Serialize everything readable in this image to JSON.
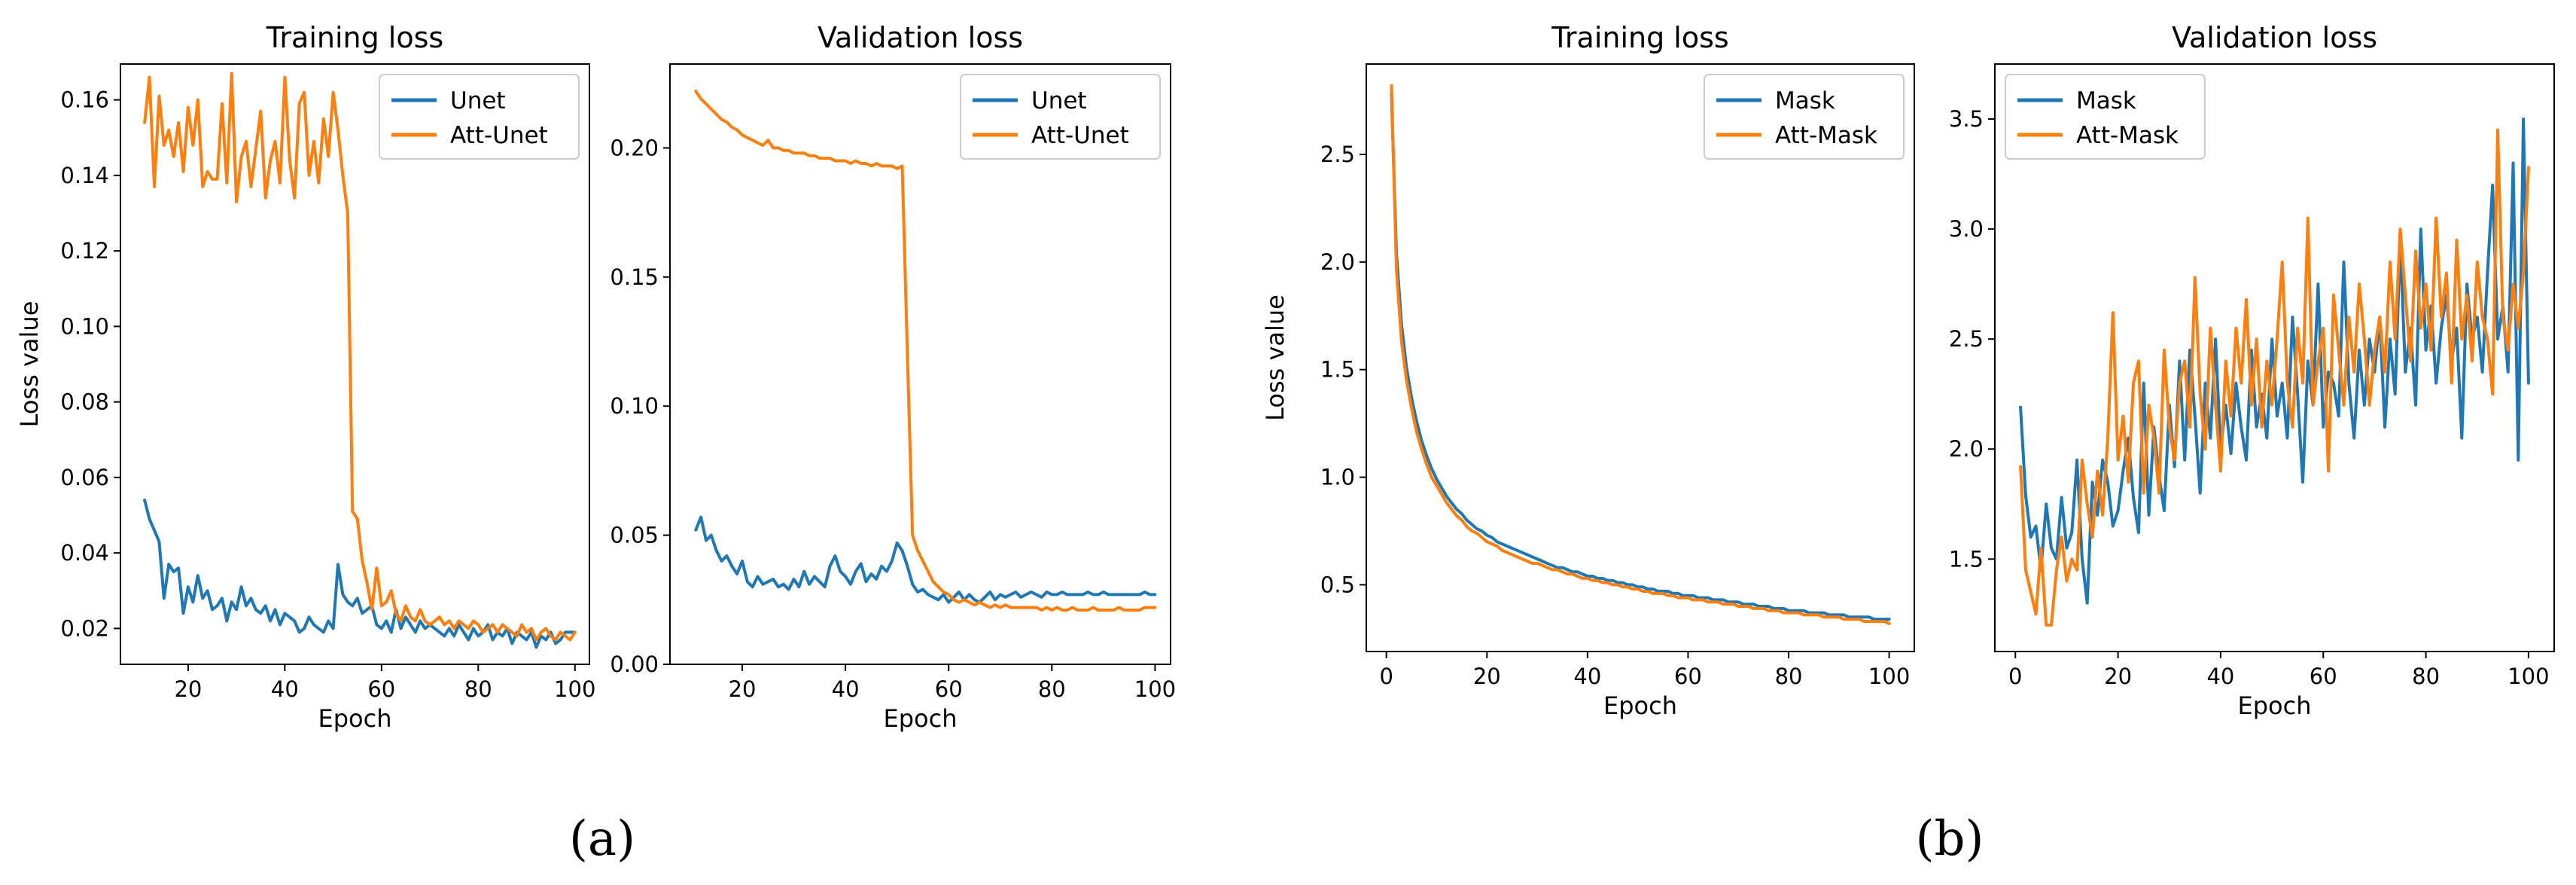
{
  "colors": {
    "series1": "#1f77b4",
    "series2": "#ff7f0e"
  },
  "panel_labels": [
    "(a)",
    "(b)"
  ],
  "chart_data": [
    {
      "type": "line",
      "title": "Training loss",
      "xlabel": "Epoch",
      "ylabel": "Loss value",
      "xlim": [
        6,
        103
      ],
      "ylim": [
        0.0105,
        0.1695
      ],
      "xticks": [
        20,
        40,
        60,
        80,
        100
      ],
      "yticks": [
        0.02,
        0.04,
        0.06,
        0.08,
        0.1,
        0.12,
        0.14,
        0.16
      ],
      "xtick_labels": [
        "20",
        "40",
        "60",
        "80",
        "100"
      ],
      "ytick_labels": [
        "0.02",
        "0.04",
        "0.06",
        "0.08",
        "0.10",
        "0.12",
        "0.14",
        "0.16"
      ],
      "legend_position": "top-right",
      "x_start": 11,
      "series": [
        {
          "name": "Unet",
          "values": [
            0.054,
            0.049,
            0.046,
            0.043,
            0.028,
            0.037,
            0.035,
            0.036,
            0.024,
            0.031,
            0.027,
            0.034,
            0.028,
            0.03,
            0.025,
            0.026,
            0.028,
            0.022,
            0.027,
            0.025,
            0.031,
            0.026,
            0.028,
            0.025,
            0.024,
            0.026,
            0.022,
            0.025,
            0.021,
            0.024,
            0.023,
            0.022,
            0.019,
            0.02,
            0.023,
            0.021,
            0.02,
            0.019,
            0.022,
            0.02,
            0.037,
            0.029,
            0.027,
            0.026,
            0.028,
            0.024,
            0.025,
            0.026,
            0.021,
            0.02,
            0.022,
            0.019,
            0.025,
            0.02,
            0.023,
            0.021,
            0.019,
            0.022,
            0.02,
            0.021,
            0.02,
            0.019,
            0.018,
            0.02,
            0.018,
            0.021,
            0.019,
            0.017,
            0.02,
            0.018,
            0.019,
            0.021,
            0.017,
            0.019,
            0.018,
            0.02,
            0.016,
            0.019,
            0.018,
            0.017,
            0.019,
            0.015,
            0.018,
            0.017,
            0.019,
            0.016,
            0.017,
            0.019,
            0.019,
            0.019
          ]
        },
        {
          "name": "Att-Unet",
          "values": [
            0.154,
            0.166,
            0.137,
            0.161,
            0.148,
            0.152,
            0.145,
            0.154,
            0.141,
            0.158,
            0.148,
            0.16,
            0.137,
            0.141,
            0.139,
            0.139,
            0.159,
            0.138,
            0.167,
            0.133,
            0.145,
            0.149,
            0.137,
            0.147,
            0.157,
            0.134,
            0.144,
            0.149,
            0.138,
            0.166,
            0.144,
            0.134,
            0.159,
            0.162,
            0.14,
            0.149,
            0.138,
            0.155,
            0.145,
            0.162,
            0.152,
            0.14,
            0.13,
            0.051,
            0.049,
            0.038,
            0.032,
            0.025,
            0.036,
            0.026,
            0.027,
            0.03,
            0.024,
            0.022,
            0.026,
            0.023,
            0.022,
            0.025,
            0.022,
            0.021,
            0.022,
            0.023,
            0.021,
            0.022,
            0.02,
            0.022,
            0.021,
            0.02,
            0.022,
            0.021,
            0.019,
            0.02,
            0.021,
            0.019,
            0.021,
            0.02,
            0.019,
            0.018,
            0.021,
            0.019,
            0.02,
            0.017,
            0.019,
            0.02,
            0.018,
            0.017,
            0.019,
            0.018,
            0.017,
            0.019
          ]
        }
      ]
    },
    {
      "type": "line",
      "title": "Validation loss",
      "xlabel": "Epoch",
      "xlim": [
        6,
        103
      ],
      "ylim": [
        0.0,
        0.2325
      ],
      "xticks": [
        20,
        40,
        60,
        80,
        100
      ],
      "yticks": [
        0.0,
        0.05,
        0.1,
        0.15,
        0.2
      ],
      "xtick_labels": [
        "20",
        "40",
        "60",
        "80",
        "100"
      ],
      "ytick_labels": [
        "0.00",
        "0.05",
        "0.10",
        "0.15",
        "0.20"
      ],
      "legend_position": "top-right",
      "x_start": 11,
      "series": [
        {
          "name": "Unet",
          "values": [
            0.052,
            0.057,
            0.048,
            0.05,
            0.044,
            0.04,
            0.042,
            0.038,
            0.035,
            0.04,
            0.032,
            0.03,
            0.034,
            0.031,
            0.032,
            0.033,
            0.03,
            0.031,
            0.029,
            0.033,
            0.03,
            0.036,
            0.031,
            0.034,
            0.032,
            0.03,
            0.038,
            0.042,
            0.036,
            0.034,
            0.031,
            0.036,
            0.039,
            0.032,
            0.035,
            0.033,
            0.038,
            0.036,
            0.04,
            0.047,
            0.044,
            0.038,
            0.031,
            0.028,
            0.029,
            0.027,
            0.026,
            0.025,
            0.027,
            0.024,
            0.026,
            0.028,
            0.025,
            0.027,
            0.025,
            0.024,
            0.026,
            0.028,
            0.025,
            0.027,
            0.026,
            0.027,
            0.028,
            0.026,
            0.027,
            0.028,
            0.027,
            0.026,
            0.028,
            0.027,
            0.027,
            0.028,
            0.027,
            0.027,
            0.027,
            0.027,
            0.028,
            0.027,
            0.027,
            0.028,
            0.027,
            0.027,
            0.027,
            0.027,
            0.027,
            0.027,
            0.027,
            0.028,
            0.027,
            0.027
          ]
        },
        {
          "name": "Att-Unet",
          "values": [
            0.222,
            0.219,
            0.217,
            0.215,
            0.213,
            0.211,
            0.21,
            0.208,
            0.207,
            0.205,
            0.204,
            0.203,
            0.202,
            0.201,
            0.203,
            0.2,
            0.2,
            0.199,
            0.199,
            0.198,
            0.198,
            0.198,
            0.197,
            0.197,
            0.196,
            0.196,
            0.196,
            0.195,
            0.195,
            0.195,
            0.194,
            0.195,
            0.194,
            0.194,
            0.193,
            0.194,
            0.193,
            0.193,
            0.193,
            0.192,
            0.193,
            0.12,
            0.05,
            0.044,
            0.04,
            0.036,
            0.032,
            0.03,
            0.028,
            0.027,
            0.025,
            0.024,
            0.025,
            0.024,
            0.023,
            0.024,
            0.023,
            0.022,
            0.023,
            0.022,
            0.023,
            0.022,
            0.022,
            0.022,
            0.022,
            0.022,
            0.022,
            0.021,
            0.022,
            0.021,
            0.022,
            0.021,
            0.021,
            0.022,
            0.021,
            0.021,
            0.021,
            0.022,
            0.021,
            0.021,
            0.021,
            0.021,
            0.022,
            0.021,
            0.021,
            0.021,
            0.021,
            0.022,
            0.022,
            0.022
          ]
        }
      ]
    },
    {
      "type": "line",
      "title": "Training loss",
      "xlabel": "Epoch",
      "ylabel": "Loss value",
      "xlim": [
        -4,
        105
      ],
      "ylim": [
        0.19,
        2.92
      ],
      "xticks": [
        0,
        20,
        40,
        60,
        80,
        100
      ],
      "yticks": [
        0.5,
        1.0,
        1.5,
        2.0,
        2.5
      ],
      "xtick_labels": [
        "0",
        "20",
        "40",
        "60",
        "80",
        "100"
      ],
      "ytick_labels": [
        "0.5",
        "1.0",
        "1.5",
        "2.0",
        "2.5"
      ],
      "legend_position": "top-right",
      "x_start": 1,
      "series": [
        {
          "name": "Mask",
          "values": [
            2.78,
            2.04,
            1.71,
            1.51,
            1.37,
            1.26,
            1.17,
            1.1,
            1.04,
            0.99,
            0.95,
            0.91,
            0.88,
            0.85,
            0.83,
            0.8,
            0.78,
            0.76,
            0.75,
            0.73,
            0.72,
            0.7,
            0.69,
            0.68,
            0.67,
            0.66,
            0.65,
            0.64,
            0.63,
            0.62,
            0.61,
            0.6,
            0.59,
            0.58,
            0.58,
            0.57,
            0.56,
            0.56,
            0.55,
            0.54,
            0.54,
            0.53,
            0.53,
            0.52,
            0.52,
            0.51,
            0.51,
            0.5,
            0.5,
            0.49,
            0.49,
            0.48,
            0.48,
            0.47,
            0.47,
            0.47,
            0.46,
            0.46,
            0.45,
            0.45,
            0.45,
            0.44,
            0.44,
            0.44,
            0.43,
            0.43,
            0.43,
            0.42,
            0.42,
            0.42,
            0.41,
            0.41,
            0.41,
            0.4,
            0.4,
            0.4,
            0.39,
            0.39,
            0.39,
            0.38,
            0.38,
            0.38,
            0.38,
            0.37,
            0.37,
            0.37,
            0.37,
            0.36,
            0.36,
            0.36,
            0.36,
            0.35,
            0.35,
            0.35,
            0.35,
            0.35,
            0.34,
            0.34,
            0.34,
            0.34
          ]
        },
        {
          "name": "Att-Mask",
          "values": [
            2.82,
            1.96,
            1.63,
            1.45,
            1.32,
            1.21,
            1.13,
            1.06,
            1.0,
            0.96,
            0.92,
            0.88,
            0.85,
            0.82,
            0.8,
            0.77,
            0.75,
            0.74,
            0.72,
            0.7,
            0.69,
            0.68,
            0.66,
            0.65,
            0.64,
            0.63,
            0.62,
            0.61,
            0.6,
            0.6,
            0.59,
            0.58,
            0.57,
            0.57,
            0.56,
            0.55,
            0.55,
            0.54,
            0.53,
            0.53,
            0.52,
            0.52,
            0.51,
            0.51,
            0.5,
            0.5,
            0.49,
            0.49,
            0.48,
            0.48,
            0.47,
            0.47,
            0.46,
            0.46,
            0.46,
            0.45,
            0.45,
            0.44,
            0.44,
            0.44,
            0.43,
            0.43,
            0.43,
            0.42,
            0.42,
            0.42,
            0.41,
            0.41,
            0.41,
            0.4,
            0.4,
            0.4,
            0.39,
            0.39,
            0.39,
            0.38,
            0.38,
            0.38,
            0.37,
            0.37,
            0.37,
            0.37,
            0.36,
            0.36,
            0.36,
            0.36,
            0.35,
            0.35,
            0.35,
            0.35,
            0.34,
            0.34,
            0.34,
            0.34,
            0.33,
            0.33,
            0.33,
            0.33,
            0.33,
            0.32
          ]
        }
      ]
    },
    {
      "type": "line",
      "title": "Validation loss",
      "xlabel": "Epoch",
      "xlim": [
        -4,
        105
      ],
      "ylim": [
        1.08,
        3.75
      ],
      "xticks": [
        0,
        20,
        40,
        60,
        80,
        100
      ],
      "yticks": [
        1.5,
        2.0,
        2.5,
        3.0,
        3.5
      ],
      "xtick_labels": [
        "0",
        "20",
        "40",
        "60",
        "80",
        "100"
      ],
      "ytick_labels": [
        "1.5",
        "2.0",
        "2.5",
        "3.0",
        "3.5"
      ],
      "legend_position": "top-left",
      "x_start": 1,
      "series": [
        {
          "name": "Mask",
          "values": [
            2.19,
            1.79,
            1.6,
            1.65,
            1.45,
            1.75,
            1.55,
            1.5,
            1.78,
            1.55,
            1.62,
            1.95,
            1.5,
            1.3,
            1.85,
            1.7,
            1.95,
            1.85,
            1.65,
            1.72,
            1.9,
            2.05,
            1.78,
            1.62,
            2.3,
            1.7,
            2.1,
            1.88,
            1.72,
            2.2,
            1.92,
            2.4,
            1.95,
            2.45,
            2.15,
            1.8,
            2.3,
            2.05,
            2.5,
            2.0,
            2.2,
            1.98,
            2.3,
            2.1,
            1.95,
            2.45,
            2.1,
            2.25,
            2.05,
            2.5,
            2.15,
            2.3,
            2.05,
            2.6,
            2.25,
            1.85,
            2.4,
            2.2,
            2.75,
            2.1,
            2.35,
            2.3,
            2.15,
            2.85,
            2.3,
            2.05,
            2.45,
            2.2,
            2.5,
            2.35,
            2.6,
            2.1,
            2.5,
            2.25,
            2.95,
            2.35,
            2.55,
            2.2,
            3.0,
            2.45,
            2.65,
            2.3,
            2.55,
            2.7,
            2.4,
            2.55,
            2.05,
            2.75,
            2.5,
            2.6,
            2.35,
            2.8,
            3.2,
            2.5,
            2.65,
            2.35,
            3.3,
            1.95,
            3.5,
            2.3
          ]
        },
        {
          "name": "Att-Mask",
          "values": [
            1.92,
            1.45,
            1.35,
            1.25,
            1.55,
            1.2,
            1.2,
            1.45,
            1.6,
            1.4,
            1.5,
            1.45,
            1.95,
            1.75,
            1.6,
            1.9,
            1.7,
            2.05,
            2.62,
            1.95,
            2.15,
            1.85,
            2.3,
            2.4,
            1.8,
            2.2,
            2.05,
            1.8,
            2.45,
            2.1,
            1.95,
            2.3,
            2.4,
            2.1,
            2.78,
            2.25,
            2.0,
            2.55,
            2.2,
            1.9,
            2.4,
            2.15,
            2.55,
            2.3,
            2.68,
            2.2,
            2.5,
            2.1,
            2.4,
            2.2,
            2.5,
            2.85,
            2.3,
            2.1,
            2.55,
            2.3,
            3.05,
            2.2,
            2.4,
            2.55,
            1.9,
            2.7,
            2.45,
            2.2,
            2.6,
            2.35,
            2.75,
            2.5,
            2.2,
            2.45,
            2.6,
            2.35,
            2.85,
            2.5,
            3.0,
            2.7,
            2.4,
            2.9,
            2.55,
            2.75,
            2.45,
            3.05,
            2.6,
            2.8,
            2.3,
            2.95,
            2.5,
            2.7,
            2.4,
            2.85,
            2.6,
            2.5,
            2.25,
            3.45,
            2.6,
            2.45,
            2.75,
            2.55,
            2.8,
            3.28
          ]
        }
      ]
    }
  ]
}
